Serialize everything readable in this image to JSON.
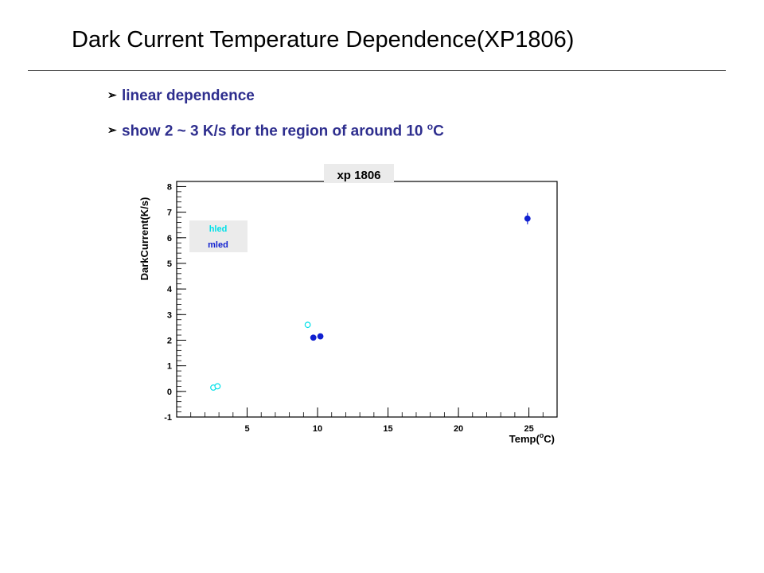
{
  "slide": {
    "title": "Dark Current Temperature Dependence(XP1806)",
    "bullets": [
      {
        "text": "linear dependence"
      },
      {
        "pre": "show  2 ~ 3 K/s for the region of  around 10 ",
        "sup": "o",
        "post": "C"
      }
    ],
    "bullet_color": "#2e2e8e"
  },
  "chart_data": {
    "type": "scatter",
    "title": "xp 1806",
    "xlabel": "Temp(",
    "xlabel_sup": "o",
    "xlabel_end": "C)",
    "ylabel": "DarkCurrent(K/s)",
    "xlim": [
      0,
      27
    ],
    "ylim": [
      -1,
      8.2
    ],
    "x_ticks": [
      5,
      10,
      15,
      20,
      25
    ],
    "y_ticks": [
      -1,
      0,
      1,
      2,
      3,
      4,
      5,
      6,
      7,
      8
    ],
    "grid": false,
    "legend_position": "top-left",
    "series": [
      {
        "name": "hled",
        "color": "#00e0e8",
        "marker": "open-circle",
        "x": [
          2.6,
          2.9,
          9.3
        ],
        "y": [
          0.15,
          0.2,
          2.6
        ],
        "err": [
          0.05,
          0.05,
          0.12
        ]
      },
      {
        "name": "mled",
        "color": "#1020d0",
        "marker": "filled-circle",
        "x": [
          9.7,
          10.2,
          24.9
        ],
        "y": [
          2.1,
          2.15,
          6.75
        ],
        "err": [
          0.05,
          0.05,
          0.22
        ]
      }
    ]
  }
}
